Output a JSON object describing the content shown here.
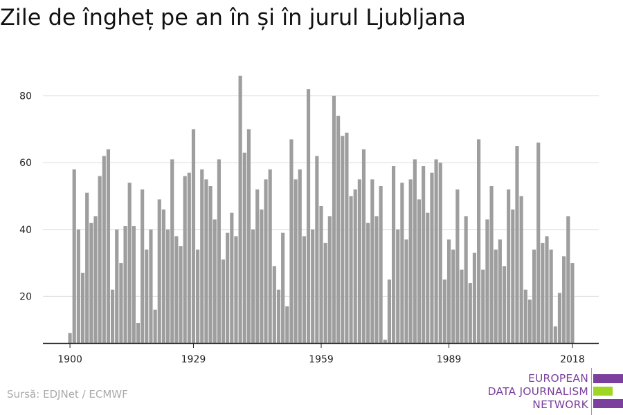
{
  "chart_data": {
    "type": "bar",
    "title": "Zile de îngheț pe an în și în jurul Ljubljana",
    "xlabel": "",
    "ylabel": "",
    "x_start": 1900,
    "x_end": 2018,
    "x_ticks": [
      1900,
      1929,
      1959,
      1989,
      2018
    ],
    "y_ticks": [
      20,
      40,
      60,
      80
    ],
    "ylim": [
      6,
      88
    ],
    "grid": true,
    "bar_color": "#9e9e9e",
    "values": [
      9,
      58,
      40,
      27,
      51,
      42,
      44,
      56,
      62,
      64,
      22,
      40,
      30,
      41,
      54,
      41,
      12,
      52,
      34,
      40,
      16,
      49,
      46,
      40,
      61,
      38,
      35,
      56,
      57,
      70,
      34,
      58,
      55,
      53,
      43,
      61,
      31,
      39,
      45,
      38,
      86,
      63,
      70,
      40,
      52,
      46,
      55,
      58,
      29,
      22,
      39,
      17,
      67,
      55,
      58,
      38,
      82,
      40,
      62,
      47,
      36,
      44,
      80,
      74,
      68,
      69,
      50,
      52,
      55,
      64,
      42,
      55,
      44,
      53,
      7,
      25,
      59,
      40,
      54,
      37,
      55,
      61,
      49,
      59,
      45,
      57,
      61,
      60,
      25,
      37,
      34,
      52,
      28,
      44,
      24,
      33,
      67,
      28,
      43,
      53,
      34,
      37,
      29,
      52,
      46,
      65,
      50,
      22,
      19,
      34,
      66,
      36,
      38,
      34,
      11,
      21,
      32,
      44,
      30
    ]
  },
  "source": "Sursă: EDJNet / ECMWF",
  "logo": {
    "lines": [
      "EUROPEAN",
      "DATA JOURNALISM",
      "NETWORK"
    ],
    "colors": [
      "#7b3f9e",
      "#9fd623",
      "#7b3f9e"
    ]
  }
}
